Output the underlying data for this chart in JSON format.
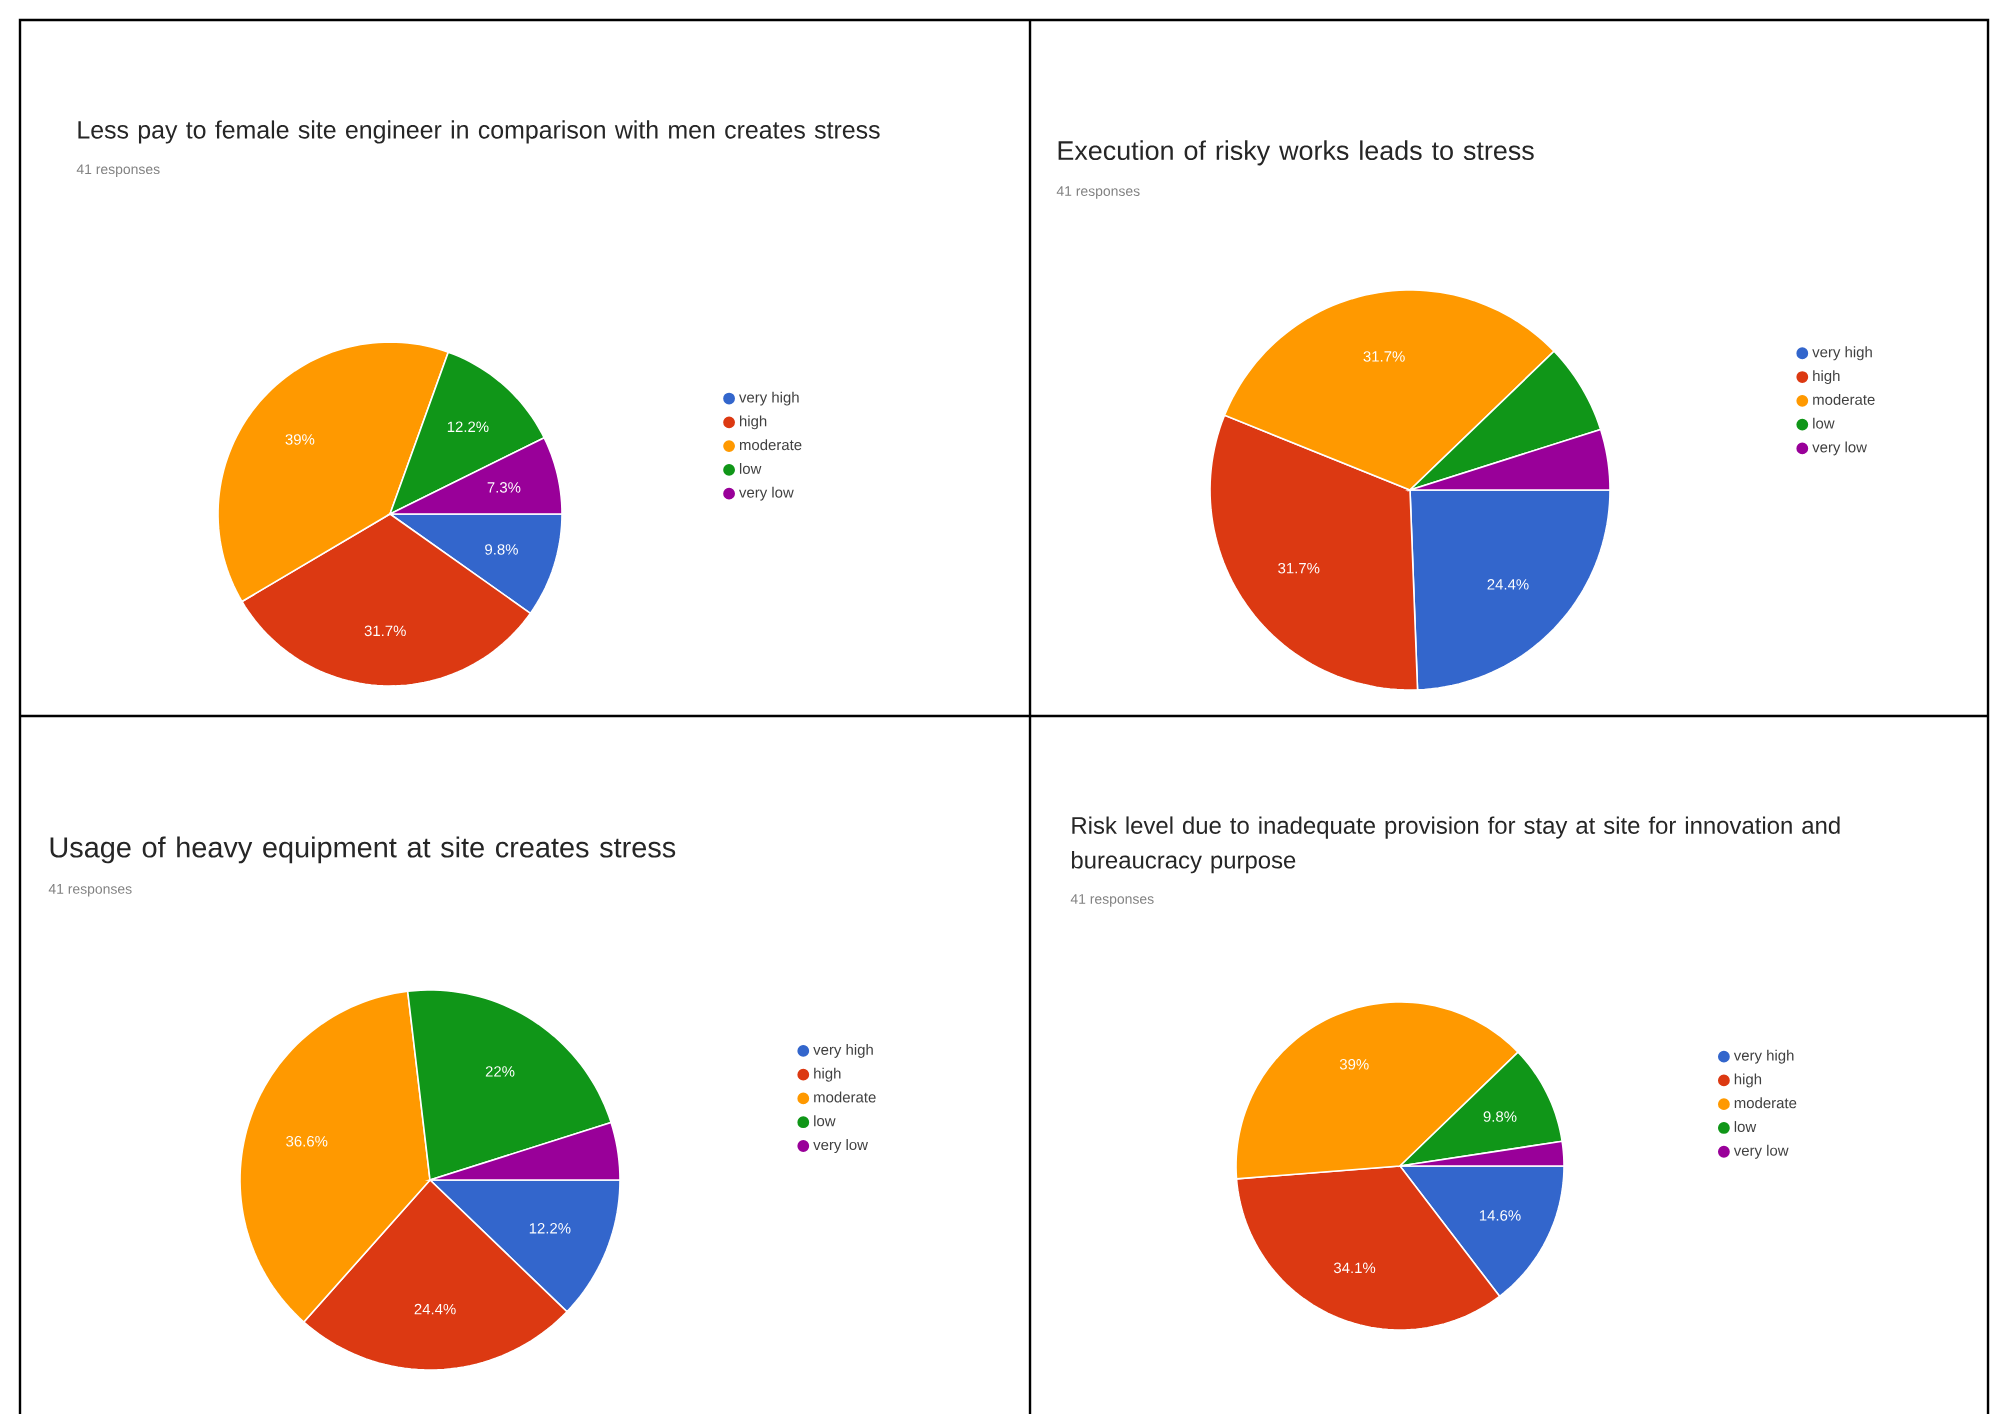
{
  "chart_data": [
    {
      "type": "pie",
      "title": "Less pay to female site engineer in comparison with men creates stress",
      "subtitle": "41 responses",
      "categories": [
        "very high",
        "high",
        "moderate",
        "low",
        "very low"
      ],
      "values": [
        9.8,
        31.7,
        39,
        12.2,
        7.3
      ],
      "value_labels": [
        "9.8%",
        "31.7%",
        "39%",
        "12.2%",
        "7.3%"
      ],
      "colors": [
        "#3366cc",
        "#dc3912",
        "#ff9900",
        "#109618",
        "#990099"
      ],
      "legend": "right"
    },
    {
      "type": "pie",
      "title": "Execution of risky works leads to stress",
      "subtitle": "41 responses",
      "categories": [
        "very high",
        "high",
        "moderate",
        "low",
        "very low"
      ],
      "values": [
        24.4,
        31.7,
        31.7,
        7.3,
        4.9
      ],
      "value_labels": [
        "24.4%",
        "31.7%",
        "31.7%",
        null,
        null
      ],
      "colors": [
        "#3366cc",
        "#dc3912",
        "#ff9900",
        "#109618",
        "#990099"
      ],
      "legend": "right"
    },
    {
      "type": "pie",
      "title": "Usage of heavy equipment at site creates stress",
      "subtitle": "41 responses",
      "categories": [
        "very high",
        "high",
        "moderate",
        "low",
        "very low"
      ],
      "values": [
        12.2,
        24.4,
        36.6,
        22,
        4.9
      ],
      "value_labels": [
        "12.2%",
        "24.4%",
        "36.6%",
        "22%",
        null
      ],
      "colors": [
        "#3366cc",
        "#dc3912",
        "#ff9900",
        "#109618",
        "#990099"
      ],
      "legend": "right"
    },
    {
      "type": "pie",
      "title": "Risk level due to inadequate provision for stay at site for innovation and bureaucracy purpose",
      "subtitle": "41 responses",
      "categories": [
        "very high",
        "high",
        "moderate",
        "low",
        "very low"
      ],
      "values": [
        14.6,
        34.1,
        39,
        9.8,
        2.4
      ],
      "value_labels": [
        "14.6%",
        "34.1%",
        "39%",
        "9.8%",
        null
      ],
      "colors": [
        "#3366cc",
        "#dc3912",
        "#ff9900",
        "#109618",
        "#990099"
      ],
      "legend": "right"
    }
  ]
}
